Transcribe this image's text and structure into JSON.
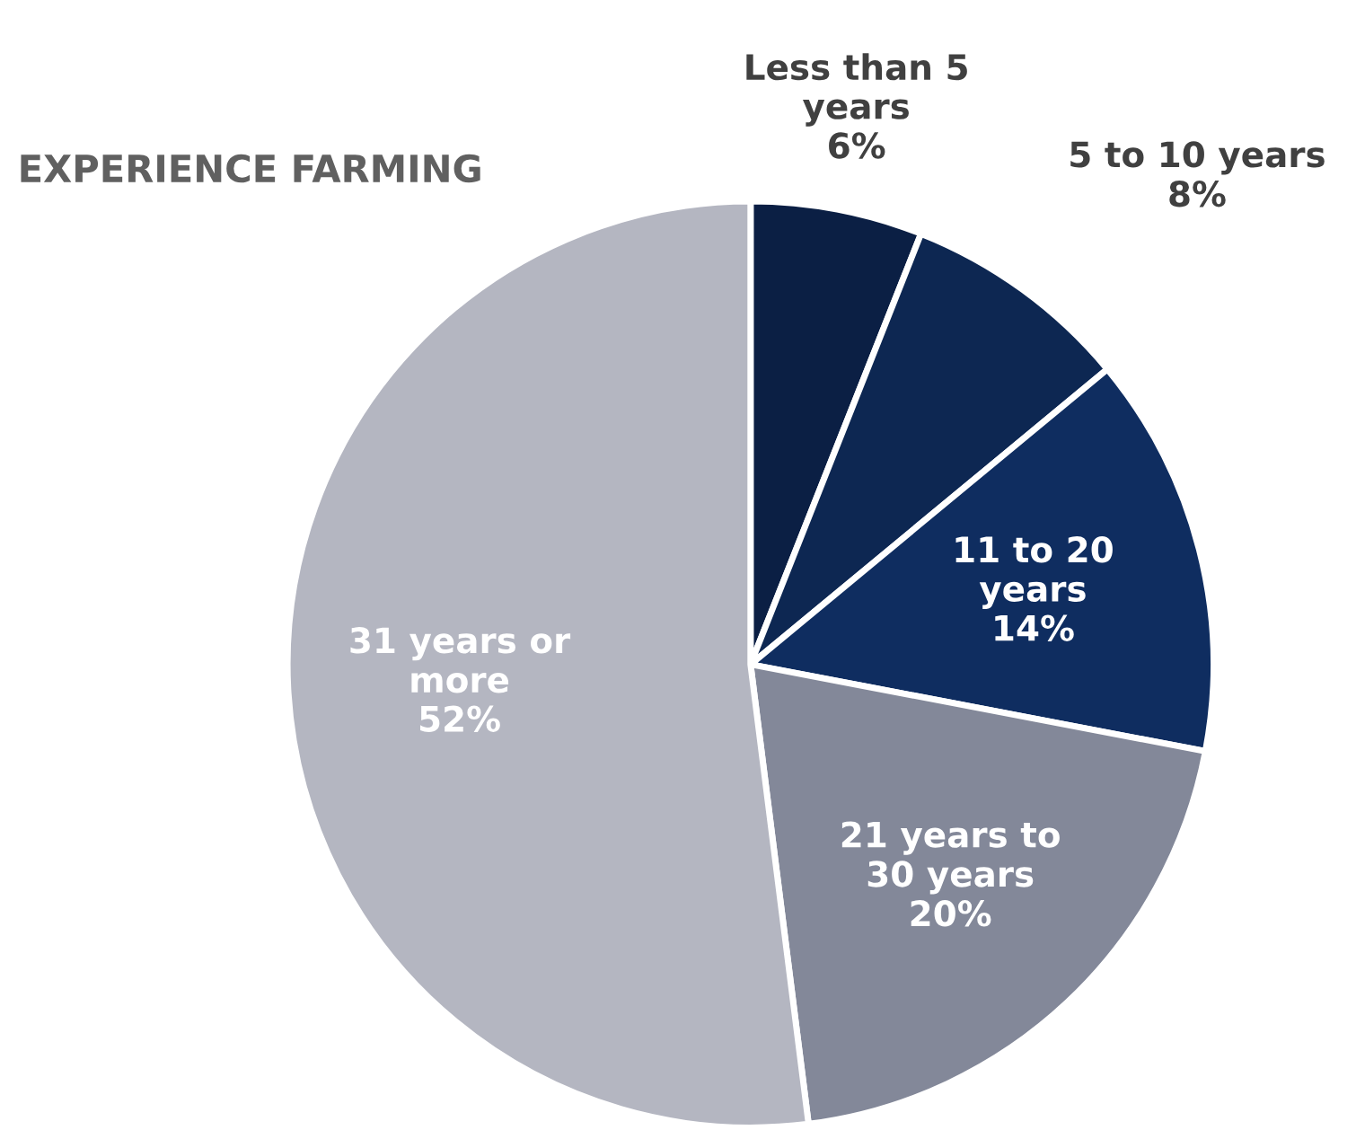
{
  "chart_data": {
    "type": "pie",
    "title": "EXPERIENCE FARMING",
    "categories": [
      "Less than 5\nyears",
      "5 to 10 years",
      "11 to 20\nyears",
      "21 years to\n30 years",
      "31 years or\nmore"
    ],
    "values": [
      6,
      8,
      14,
      20,
      52
    ],
    "value_labels": [
      "6%",
      "8%",
      "14%",
      "20%",
      "52%"
    ],
    "colors": [
      "#0b1f44",
      "#0d2752",
      "#0f2d60",
      "#838899",
      "#b4b6c1"
    ],
    "legend": false
  }
}
